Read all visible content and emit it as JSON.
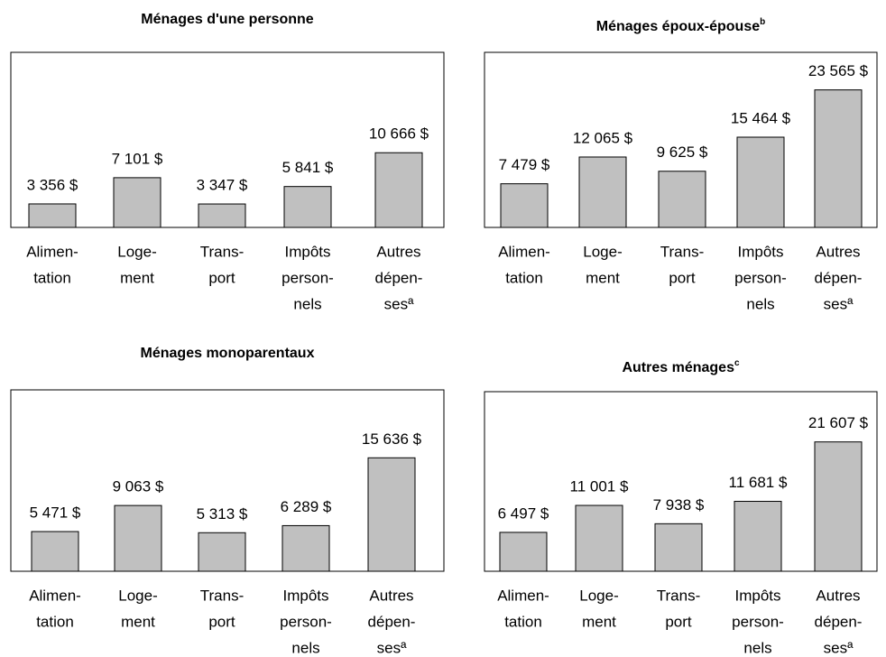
{
  "chart_data": [
    {
      "type": "bar",
      "title": "Ménages d'une personne",
      "categories": [
        [
          "Alimen-",
          "tation"
        ],
        [
          "Loge-",
          "ment"
        ],
        [
          "Trans-",
          "port"
        ],
        [
          "Impôts",
          "person-",
          "nels"
        ],
        [
          "Autres",
          "dépen-",
          "sesª"
        ]
      ],
      "values": [
        3356,
        7101,
        3347,
        5841,
        10666
      ],
      "value_labels": [
        "3 356 $",
        "7 101 $",
        "3 347 $",
        "5 841 $",
        "10 666 $"
      ],
      "color": "#c0c0c0",
      "ylim": [
        0,
        25000
      ]
    },
    {
      "type": "bar",
      "title": "Ménages époux-épouse",
      "title_note": "b",
      "categories": [
        [
          "Alimen-",
          "tation"
        ],
        [
          "Loge-",
          "ment"
        ],
        [
          "Trans-",
          "port"
        ],
        [
          "Impôts",
          "person-",
          "nels"
        ],
        [
          "Autres",
          "dépen-",
          "sesª"
        ]
      ],
      "values": [
        7479,
        12065,
        9625,
        15464,
        23565
      ],
      "value_labels": [
        "7 479 $",
        "12 065 $",
        "9 625 $",
        "15 464 $",
        "23 565 $"
      ],
      "color": "#c0c0c0",
      "ylim": [
        0,
        30000
      ]
    },
    {
      "type": "bar",
      "title": "Ménages monoparentaux",
      "categories": [
        [
          "Alimen-",
          "tation"
        ],
        [
          "Loge-",
          "ment"
        ],
        [
          "Trans-",
          "port"
        ],
        [
          "Impôts",
          "person-",
          "nels"
        ],
        [
          "Autres",
          "dépen-",
          "sesª"
        ]
      ],
      "values": [
        5471,
        9063,
        5313,
        6289,
        15636
      ],
      "value_labels": [
        "5 471 $",
        "9 063 $",
        "5 313 $",
        "6 289 $",
        "15 636 $"
      ],
      "color": "#c0c0c0",
      "ylim": [
        0,
        25000
      ]
    },
    {
      "type": "bar",
      "title": "Autres ménages",
      "title_note": "c",
      "categories": [
        [
          "Alimen-",
          "tation"
        ],
        [
          "Loge-",
          "ment"
        ],
        [
          "Trans-",
          "port"
        ],
        [
          "Impôts",
          "person-",
          "nels"
        ],
        [
          "Autres",
          "dépen-",
          "sesª"
        ]
      ],
      "values": [
        6497,
        11001,
        7938,
        11681,
        21607
      ],
      "value_labels": [
        "6 497 $",
        "11 001 $",
        "7 938 $",
        "11 681 $",
        "21 607 $"
      ],
      "color": "#c0c0c0",
      "ylim": [
        0,
        30000
      ]
    }
  ]
}
